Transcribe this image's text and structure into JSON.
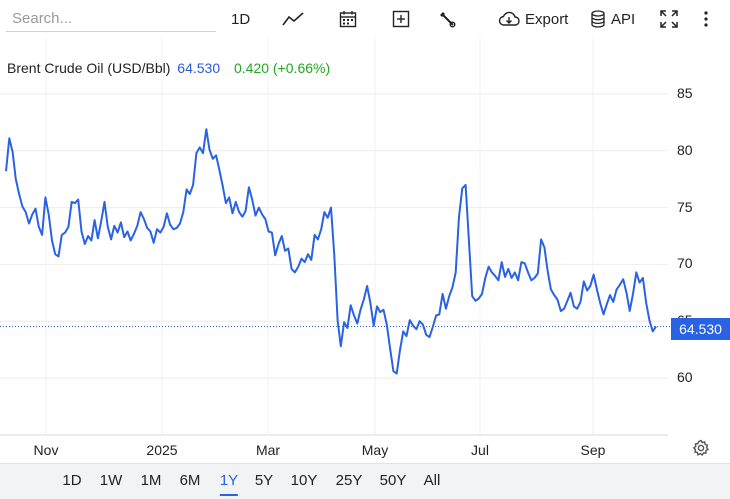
{
  "toolbar": {
    "search_placeholder": "Search...",
    "interval_label": "1D",
    "export_label": "Export",
    "api_label": "API"
  },
  "legend": {
    "name": "Brent Crude Oil (USD/Bbl)",
    "price": "64.530",
    "change": "0.420 (+0.66%)"
  },
  "last_price_tag": "64.530",
  "range_selector": {
    "options": [
      "1D",
      "1W",
      "1M",
      "6M",
      "1Y",
      "5Y",
      "10Y",
      "25Y",
      "50Y",
      "All"
    ],
    "active": "1Y"
  },
  "chart_data": {
    "type": "line",
    "title": "Brent Crude Oil (USD/Bbl)",
    "xlabel": "",
    "ylabel": "",
    "y_tick_labels": [
      "60",
      "65",
      "70",
      "75",
      "80",
      "85"
    ],
    "x_tick_labels": [
      "Nov",
      "2025",
      "Mar",
      "May",
      "Jul",
      "Sep"
    ],
    "ylim": [
      55.4,
      89.2
    ],
    "grid": true,
    "legend_position": "top-left",
    "line_color": "#2a62e4",
    "last_value": 64.53,
    "series": [
      {
        "name": "Brent Crude Oil (USD/Bbl)",
        "values": [
          78.2,
          81.1,
          79.9,
          77.5,
          76.2,
          75.1,
          74.6,
          73.6,
          74.4,
          74.9,
          73.3,
          72.6,
          75.9,
          74.4,
          72.1,
          70.9,
          70.7,
          72.6,
          72.8,
          73.3,
          75.5,
          75.4,
          75.7,
          72.9,
          71.8,
          72.5,
          72.1,
          73.9,
          72.3,
          73.8,
          75.5,
          73.3,
          72.2,
          73.4,
          72.8,
          73.7,
          72.4,
          72.9,
          72.1,
          72.7,
          73.4,
          74.6,
          74.0,
          73.2,
          72.9,
          71.9,
          73.1,
          72.8,
          73.3,
          74.5,
          73.5,
          73.1,
          73.2,
          73.6,
          74.6,
          76.6,
          76.2,
          77.0,
          79.8,
          80.3,
          79.8,
          81.9,
          80.1,
          79.3,
          79.6,
          78.3,
          76.9,
          75.4,
          75.9,
          74.5,
          75.5,
          74.6,
          74.2,
          74.7,
          76.8,
          75.7,
          74.3,
          75.0,
          74.4,
          74.0,
          72.9,
          72.8,
          70.8,
          71.8,
          72.5,
          71.2,
          71.4,
          69.6,
          69.3,
          69.8,
          70.5,
          70.2,
          70.9,
          70.4,
          72.6,
          72.2,
          73.1,
          74.6,
          74.1,
          75.0,
          70.8,
          65.1,
          62.8,
          64.9,
          64.4,
          66.4,
          65.5,
          64.8,
          66.0,
          66.9,
          68.1,
          66.6,
          64.6,
          66.3,
          65.8,
          66.0,
          64.7,
          62.6,
          60.6,
          60.4,
          62.4,
          64.1,
          63.7,
          65.1,
          64.6,
          64.3,
          65.0,
          64.7,
          63.8,
          63.6,
          64.5,
          65.5,
          65.6,
          67.4,
          66.1,
          67.2,
          68.0,
          69.3,
          74.2,
          76.7,
          77.0,
          72.1,
          67.2,
          66.8,
          67.0,
          67.4,
          68.8,
          69.8,
          69.3,
          69.0,
          68.6,
          70.2,
          68.9,
          69.6,
          68.8,
          69.3,
          68.6,
          70.2,
          70.1,
          69.3,
          68.6,
          68.8,
          69.2,
          72.2,
          71.5,
          69.4,
          67.8,
          67.3,
          66.9,
          65.9,
          66.1,
          66.8,
          67.5,
          66.3,
          66.1,
          66.7,
          68.5,
          67.7,
          68.1,
          69.1,
          67.8,
          66.6,
          65.6,
          66.5,
          67.3,
          66.7,
          67.8,
          68.2,
          68.7,
          67.5,
          65.9,
          67.4,
          69.3,
          68.4,
          68.8,
          66.6,
          65.1,
          64.1,
          64.53
        ]
      }
    ]
  }
}
